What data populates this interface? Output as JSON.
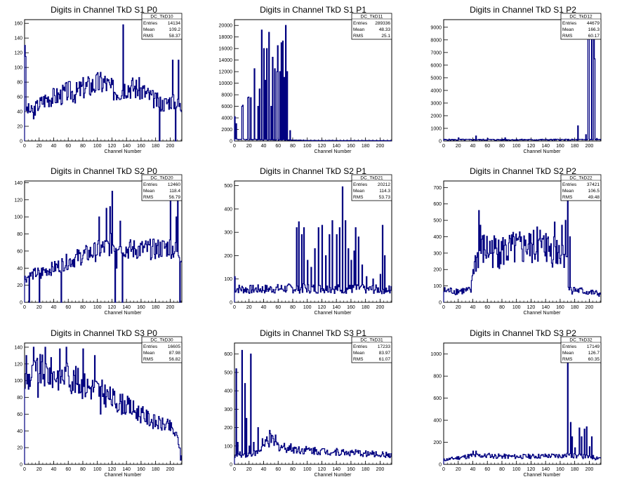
{
  "page": {
    "background": "#ffffff",
    "line_color": "#000080"
  },
  "chart_data": [
    {
      "type": "histogram",
      "title": "Digits in Channel TkD S1 P0",
      "xlabel": "Channel Number",
      "stats": {
        "name": "DC_TkD10",
        "entries": "14134",
        "mean": "109.2",
        "rms": "58.37"
      },
      "xlim": [
        0,
        216
      ],
      "ylim": [
        0,
        165
      ],
      "xticks": [
        0,
        20,
        40,
        60,
        80,
        100,
        120,
        140,
        160,
        180,
        200
      ],
      "yticks": [
        0,
        20,
        40,
        60,
        80,
        100,
        120,
        140,
        160
      ],
      "profile": [
        [
          0,
          45
        ],
        [
          10,
          40
        ],
        [
          20,
          50
        ],
        [
          30,
          58
        ],
        [
          40,
          60
        ],
        [
          50,
          62
        ],
        [
          60,
          68
        ],
        [
          70,
          65
        ],
        [
          80,
          72
        ],
        [
          90,
          75
        ],
        [
          100,
          78
        ],
        [
          110,
          80
        ],
        [
          120,
          70
        ],
        [
          130,
          68
        ],
        [
          140,
          75
        ],
        [
          150,
          73
        ],
        [
          160,
          70
        ],
        [
          170,
          62
        ],
        [
          180,
          55
        ],
        [
          190,
          50
        ],
        [
          200,
          55
        ],
        [
          210,
          50
        ],
        [
          216,
          45
        ]
      ],
      "noise": 0.22,
      "spikes": [
        [
          0,
          130
        ],
        [
          1,
          115
        ],
        [
          12,
          30
        ],
        [
          135,
          158
        ],
        [
          185,
          0
        ],
        [
          203,
          110
        ],
        [
          207,
          0
        ],
        [
          211,
          110
        ]
      ]
    },
    {
      "type": "histogram",
      "title": "Digits in Channel TkD S1 P1",
      "xlabel": "Channel Number",
      "stats": {
        "name": "DC_TkD11",
        "entries": "289336",
        "mean": "48.33",
        "rms": "25.1"
      },
      "xlim": [
        0,
        216
      ],
      "ylim": [
        0,
        21000
      ],
      "xticks": [
        0,
        20,
        40,
        60,
        80,
        100,
        120,
        140,
        160,
        180,
        200
      ],
      "yticks": [
        0,
        2000,
        4000,
        6000,
        8000,
        10000,
        12000,
        14000,
        16000,
        18000,
        20000
      ],
      "profile": [
        [
          0,
          300
        ],
        [
          5,
          300
        ],
        [
          80,
          150
        ],
        [
          100,
          80
        ],
        [
          216,
          60
        ]
      ],
      "noise": 0.3,
      "spikes": [
        [
          0,
          4200
        ],
        [
          2,
          3000
        ],
        [
          10,
          6000
        ],
        [
          11,
          6200
        ],
        [
          18,
          7500
        ],
        [
          19,
          7600
        ],
        [
          22,
          7500
        ],
        [
          27,
          12500
        ],
        [
          32,
          6000
        ],
        [
          34,
          9000
        ],
        [
          37,
          19200
        ],
        [
          40,
          16000
        ],
        [
          42,
          10500
        ],
        [
          44,
          16000
        ],
        [
          47,
          18800
        ],
        [
          50,
          6000
        ],
        [
          52,
          14500
        ],
        [
          55,
          12500
        ],
        [
          58,
          12000
        ],
        [
          59,
          16500
        ],
        [
          62,
          12000
        ],
        [
          64,
          17000
        ],
        [
          66,
          17300
        ],
        [
          68,
          11000
        ],
        [
          70,
          20000
        ],
        [
          72,
          12000
        ],
        [
          76,
          1800
        ]
      ]
    },
    {
      "type": "histogram",
      "title": "Digits in Channel TkD S1 P2",
      "xlabel": "Channel Number",
      "stats": {
        "name": "DC_TkD12",
        "entries": "44679",
        "mean": "166.3",
        "rms": "60.17"
      },
      "xlim": [
        0,
        216
      ],
      "ylim": [
        0,
        9600
      ],
      "xticks": [
        0,
        20,
        40,
        60,
        80,
        100,
        120,
        140,
        160,
        180,
        200
      ],
      "yticks": [
        0,
        1000,
        2000,
        3000,
        4000,
        5000,
        6000,
        7000,
        8000,
        9000
      ],
      "profile": [
        [
          0,
          100
        ],
        [
          216,
          100
        ]
      ],
      "noise": 0.5,
      "spikes": [
        [
          20,
          250
        ],
        [
          44,
          400
        ],
        [
          60,
          200
        ],
        [
          84,
          250
        ],
        [
          120,
          120
        ],
        [
          184,
          1200
        ],
        [
          195,
          500
        ],
        [
          198,
          9500
        ],
        [
          199,
          9500
        ],
        [
          203,
          9000
        ],
        [
          206,
          9500
        ],
        [
          207,
          6500
        ],
        [
          210,
          200
        ]
      ]
    },
    {
      "type": "histogram",
      "title": "Digits in Channel TkD S2 P0",
      "xlabel": "Channel Number",
      "stats": {
        "name": "DC_TkD20",
        "entries": "12460",
        "mean": "118.4",
        "rms": "56.79"
      },
      "xlim": [
        0,
        216
      ],
      "ylim": [
        0,
        142
      ],
      "xticks": [
        0,
        20,
        40,
        60,
        80,
        100,
        120,
        140,
        160,
        180,
        200
      ],
      "yticks": [
        0,
        20,
        40,
        60,
        80,
        100,
        120,
        140
      ],
      "profile": [
        [
          0,
          28
        ],
        [
          10,
          32
        ],
        [
          20,
          35
        ],
        [
          40,
          40
        ],
        [
          60,
          48
        ],
        [
          80,
          55
        ],
        [
          100,
          60
        ],
        [
          120,
          68
        ],
        [
          130,
          72
        ],
        [
          140,
          62
        ],
        [
          160,
          62
        ],
        [
          180,
          62
        ],
        [
          200,
          65
        ],
        [
          216,
          55
        ]
      ],
      "noise": 0.2,
      "spikes": [
        [
          6,
          0
        ],
        [
          14,
          40
        ],
        [
          20,
          0
        ],
        [
          22,
          28
        ],
        [
          50,
          0
        ],
        [
          102,
          100
        ],
        [
          112,
          110
        ],
        [
          117,
          112
        ],
        [
          120,
          130
        ],
        [
          124,
          0
        ],
        [
          126,
          40
        ],
        [
          131,
          95
        ],
        [
          134,
          0
        ],
        [
          200,
          140
        ],
        [
          208,
          100
        ],
        [
          210,
          120
        ],
        [
          213,
          0
        ]
      ]
    },
    {
      "type": "histogram",
      "title": "Digits in Channel TkD S2 P1",
      "xlabel": "Channel Number",
      "stats": {
        "name": "DC_TkD21",
        "entries": "20212",
        "mean": "114.3",
        "rms": "53.73"
      },
      "xlim": [
        0,
        216
      ],
      "ylim": [
        0,
        520
      ],
      "xticks": [
        0,
        20,
        40,
        60,
        80,
        100,
        120,
        140,
        160,
        180,
        200
      ],
      "yticks": [
        0,
        100,
        200,
        300,
        400,
        500
      ],
      "profile": [
        [
          0,
          60
        ],
        [
          20,
          55
        ],
        [
          80,
          60
        ],
        [
          216,
          55
        ]
      ],
      "noise": 0.35,
      "spikes": [
        [
          0,
          110
        ],
        [
          85,
          320
        ],
        [
          88,
          345
        ],
        [
          92,
          290
        ],
        [
          95,
          320
        ],
        [
          100,
          180
        ],
        [
          105,
          150
        ],
        [
          110,
          230
        ],
        [
          115,
          320
        ],
        [
          120,
          330
        ],
        [
          125,
          200
        ],
        [
          130,
          290
        ],
        [
          134,
          350
        ],
        [
          140,
          290
        ],
        [
          144,
          320
        ],
        [
          148,
          495
        ],
        [
          152,
          350
        ],
        [
          156,
          230
        ],
        [
          160,
          180
        ],
        [
          164,
          220
        ],
        [
          166,
          320
        ],
        [
          170,
          280
        ],
        [
          175,
          160
        ],
        [
          181,
          110
        ],
        [
          190,
          100
        ],
        [
          200,
          120
        ],
        [
          203,
          330
        ],
        [
          206,
          200
        ],
        [
          210,
          50
        ],
        [
          213,
          40
        ]
      ]
    },
    {
      "type": "histogram",
      "title": "Digits in Channel TkD S2 P2",
      "xlabel": "Channel Number",
      "stats": {
        "name": "DC_TkD22",
        "entries": "37421",
        "mean": "106.5",
        "rms": "49.48"
      },
      "xlim": [
        0,
        216
      ],
      "ylim": [
        0,
        740
      ],
      "xticks": [
        0,
        20,
        40,
        60,
        80,
        100,
        120,
        140,
        160,
        180,
        200
      ],
      "yticks": [
        0,
        100,
        200,
        300,
        400,
        500,
        600,
        700
      ],
      "profile": [
        [
          0,
          70
        ],
        [
          38,
          70
        ],
        [
          40,
          200
        ],
        [
          50,
          320
        ],
        [
          80,
          310
        ],
        [
          120,
          330
        ],
        [
          160,
          320
        ],
        [
          168,
          300
        ],
        [
          172,
          80
        ],
        [
          216,
          50
        ]
      ],
      "noise": 0.35,
      "spikes": [
        [
          48,
          560
        ],
        [
          50,
          470
        ],
        [
          56,
          320
        ],
        [
          75,
          380
        ],
        [
          85,
          350
        ],
        [
          96,
          400
        ],
        [
          104,
          430
        ],
        [
          112,
          380
        ],
        [
          128,
          460
        ],
        [
          132,
          440
        ],
        [
          140,
          420
        ],
        [
          152,
          490
        ],
        [
          162,
          470
        ],
        [
          167,
          500
        ],
        [
          170,
          700
        ],
        [
          173,
          400
        ],
        [
          178,
          90
        ],
        [
          190,
          80
        ]
      ]
    },
    {
      "type": "histogram",
      "title": "Digits in Channel TkD S3 P0",
      "xlabel": "Channel Number",
      "stats": {
        "name": "DC_TkD30",
        "entries": "16605",
        "mean": "87.98",
        "rms": "56.82"
      },
      "xlim": [
        0,
        216
      ],
      "ylim": [
        0,
        145
      ],
      "xticks": [
        0,
        20,
        40,
        60,
        80,
        100,
        120,
        140,
        160,
        180,
        200
      ],
      "yticks": [
        0,
        20,
        40,
        60,
        80,
        100,
        120,
        140
      ],
      "profile": [
        [
          0,
          100
        ],
        [
          20,
          112
        ],
        [
          40,
          108
        ],
        [
          60,
          105
        ],
        [
          80,
          95
        ],
        [
          100,
          90
        ],
        [
          120,
          78
        ],
        [
          140,
          70
        ],
        [
          160,
          60
        ],
        [
          180,
          50
        ],
        [
          200,
          45
        ],
        [
          210,
          32
        ],
        [
          216,
          10
        ]
      ],
      "noise": 0.18,
      "spikes": [
        [
          2,
          130
        ],
        [
          12,
          140
        ],
        [
          18,
          80
        ],
        [
          28,
          140
        ],
        [
          48,
          138
        ],
        [
          57,
          140
        ],
        [
          80,
          138
        ],
        [
          96,
          130
        ],
        [
          104,
          60
        ],
        [
          214,
          5
        ],
        [
          216,
          10
        ]
      ]
    },
    {
      "type": "histogram",
      "title": "Digits in Channel TkD S3 P1",
      "xlabel": "Channel Number",
      "stats": {
        "name": "DC_TkD31",
        "entries": "17233",
        "mean": "83.97",
        "rms": "61.07"
      },
      "xlim": [
        0,
        216
      ],
      "ylim": [
        0,
        660
      ],
      "xticks": [
        0,
        20,
        40,
        60,
        80,
        100,
        120,
        140,
        160,
        180,
        200
      ],
      "yticks": [
        0,
        100,
        200,
        300,
        400,
        500,
        600
      ],
      "profile": [
        [
          0,
          50
        ],
        [
          30,
          60
        ],
        [
          50,
          130
        ],
        [
          60,
          100
        ],
        [
          90,
          80
        ],
        [
          130,
          70
        ],
        [
          216,
          50
        ]
      ],
      "noise": 0.3,
      "spikes": [
        [
          2,
          520
        ],
        [
          4,
          120
        ],
        [
          10,
          620
        ],
        [
          14,
          440
        ],
        [
          16,
          250
        ],
        [
          20,
          100
        ],
        [
          22,
          600
        ],
        [
          26,
          120
        ],
        [
          32,
          200
        ],
        [
          38,
          140
        ],
        [
          44,
          150
        ],
        [
          48,
          185
        ],
        [
          56,
          160
        ]
      ]
    },
    {
      "type": "histogram",
      "title": "Digits in Channel TkD S3 P2",
      "xlabel": "Channel Number",
      "stats": {
        "name": "DC_TkD32",
        "entries": "17149",
        "mean": "126.7",
        "rms": "60.35"
      },
      "xlim": [
        0,
        216
      ],
      "ylim": [
        0,
        1100
      ],
      "xticks": [
        0,
        20,
        40,
        60,
        80,
        100,
        120,
        140,
        160,
        180,
        200
      ],
      "yticks": [
        0,
        200,
        400,
        600,
        800,
        1000
      ],
      "profile": [
        [
          0,
          40
        ],
        [
          40,
          80
        ],
        [
          100,
          70
        ],
        [
          170,
          80
        ],
        [
          216,
          60
        ]
      ],
      "noise": 0.3,
      "spikes": [
        [
          40,
          120
        ],
        [
          44,
          120
        ],
        [
          62,
          100
        ],
        [
          170,
          1040
        ],
        [
          174,
          380
        ],
        [
          176,
          250
        ],
        [
          180,
          150
        ],
        [
          186,
          330
        ],
        [
          189,
          250
        ],
        [
          193,
          320
        ],
        [
          196,
          340
        ],
        [
          200,
          160
        ],
        [
          203,
          250
        ],
        [
          208,
          40
        ]
      ]
    }
  ]
}
